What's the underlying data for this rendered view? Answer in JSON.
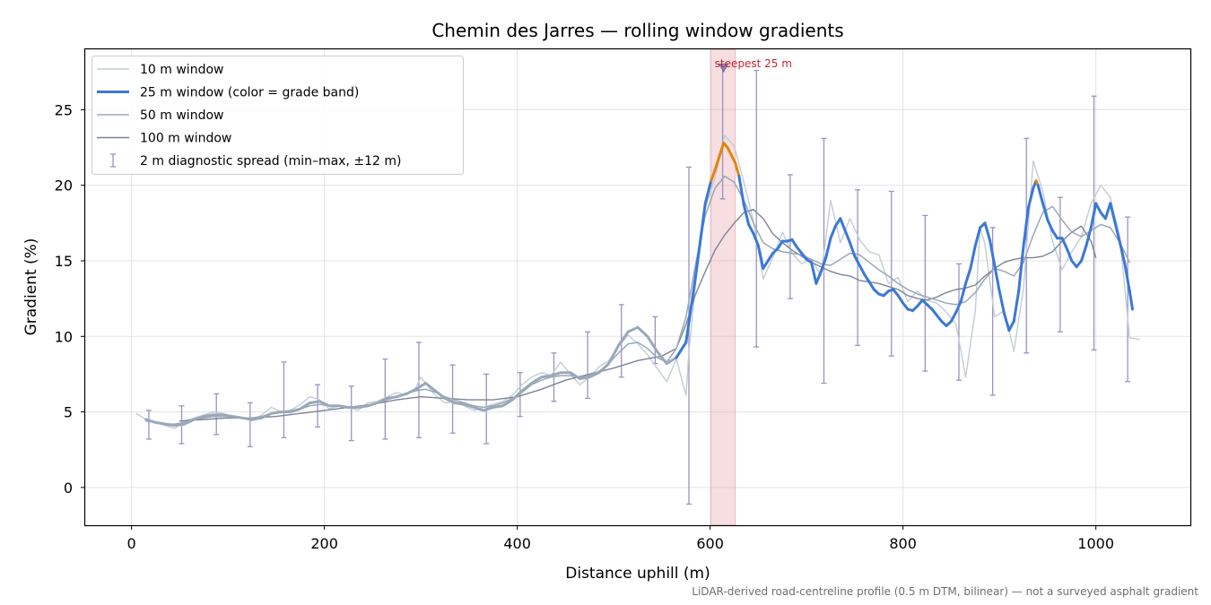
{
  "chart_data": {
    "type": "line",
    "title": "Chemin des Jarres — rolling window gradients",
    "xlabel": "Distance uphill (m)",
    "ylabel": "Gradient (%)",
    "xlim": [
      -48,
      1098
    ],
    "ylim": [
      -2.5,
      29
    ],
    "xticks": [
      0,
      200,
      400,
      600,
      800,
      1000
    ],
    "yticks": [
      0,
      5,
      10,
      15,
      20,
      25
    ],
    "grid": true,
    "legend_position": "top-left",
    "legend": [
      {
        "label": "10 m window",
        "color": "#c3ccd6",
        "kind": "line"
      },
      {
        "label": "25 m window (color = grade band)",
        "color": "#3a78d6",
        "kind": "thick-line"
      },
      {
        "label": "50 m window",
        "color": "#9aa8b8",
        "kind": "line"
      },
      {
        "label": "100 m window",
        "color": "#7a8596",
        "kind": "line"
      },
      {
        "label": "2 m diagnostic spread (min–max, ±12 m)",
        "color": "#9b93c0",
        "kind": "errorbar"
      }
    ],
    "colors": {
      "w10": "#c3ccd6",
      "w25": "#3a78d6",
      "w25_steep": "#e0850f",
      "w25_early": "#9aa8b8",
      "w50": "#9aa8b8",
      "w100": "#7a8596",
      "errorbar": "#9b93c0",
      "highlight": "#e8a3a8",
      "annotation": "#cc2233"
    },
    "steep_threshold": 20,
    "highlight_band": {
      "x0": 601,
      "x1": 626
    },
    "annotation": {
      "text": "steepest 25 m",
      "x": 614,
      "y": 27.8
    },
    "series": [
      {
        "name": "10 m window",
        "x": [
          5,
          15,
          25,
          35,
          45,
          55,
          65,
          75,
          85,
          95,
          105,
          115,
          125,
          135,
          145,
          155,
          165,
          175,
          185,
          195,
          205,
          215,
          225,
          235,
          245,
          255,
          265,
          275,
          285,
          295,
          300,
          305,
          315,
          325,
          335,
          345,
          355,
          365,
          375,
          385,
          395,
          405,
          415,
          425,
          435,
          445,
          455,
          465,
          475,
          485,
          495,
          505,
          515,
          525,
          535,
          545,
          555,
          565,
          575,
          578,
          585,
          595,
          605,
          615,
          625,
          635,
          645,
          655,
          665,
          675,
          685,
          695,
          705,
          715,
          725,
          735,
          745,
          755,
          765,
          775,
          785,
          795,
          805,
          815,
          825,
          835,
          845,
          855,
          865,
          875,
          880,
          885,
          895,
          905,
          915,
          925,
          935,
          945,
          955,
          965,
          975,
          985,
          995,
          1005,
          1015,
          1025,
          1035,
          1045
        ],
        "y": [
          4.9,
          4.5,
          4.3,
          4.1,
          3.9,
          4.4,
          4.6,
          4.8,
          5.0,
          4.9,
          4.7,
          4.6,
          4.4,
          4.8,
          5.3,
          5.0,
          5.1,
          5.5,
          6.0,
          5.8,
          5.2,
          5.4,
          5.3,
          5.1,
          5.6,
          5.7,
          6.0,
          6.3,
          6.1,
          6.6,
          7.3,
          6.9,
          6.1,
          5.6,
          5.7,
          5.4,
          5.1,
          5.3,
          5.5,
          5.7,
          6.1,
          6.8,
          7.3,
          7.6,
          7.4,
          8.3,
          7.5,
          6.8,
          7.3,
          8.0,
          8.4,
          9.3,
          10.1,
          9.5,
          8.8,
          7.9,
          7.0,
          8.5,
          6.1,
          9.0,
          13.5,
          18.5,
          20.5,
          23.3,
          22.6,
          20.2,
          17.6,
          13.8,
          15.2,
          16.9,
          15.5,
          14.8,
          15.1,
          14.0,
          19.0,
          16.2,
          17.8,
          16.4,
          15.6,
          15.4,
          13.5,
          13.9,
          12.3,
          13.0,
          12.4,
          12.2,
          11.6,
          10.8,
          7.3,
          11.7,
          17.2,
          16.1,
          11.3,
          11.7,
          9.0,
          13.2,
          21.6,
          19.6,
          16.3,
          14.4,
          15.6,
          16.6,
          18.8,
          20.0,
          19.2,
          16.5,
          9.9,
          9.8
        ]
      },
      {
        "name": "25 m window (color = grade band)",
        "x": [
          15,
          25,
          35,
          45,
          55,
          65,
          75,
          85,
          95,
          105,
          115,
          125,
          135,
          145,
          155,
          165,
          175,
          185,
          195,
          205,
          215,
          225,
          235,
          245,
          255,
          265,
          275,
          285,
          295,
          305,
          315,
          325,
          335,
          345,
          355,
          365,
          375,
          385,
          395,
          405,
          415,
          425,
          435,
          445,
          455,
          465,
          475,
          485,
          495,
          505,
          515,
          525,
          535,
          545,
          555,
          565,
          575,
          585,
          595,
          601,
          605,
          610,
          614,
          618,
          622,
          626,
          630,
          635,
          640,
          645,
          650,
          655,
          660,
          665,
          670,
          675,
          680,
          685,
          690,
          695,
          700,
          705,
          710,
          715,
          720,
          725,
          730,
          735,
          740,
          745,
          750,
          755,
          760,
          765,
          770,
          775,
          780,
          785,
          790,
          795,
          800,
          805,
          810,
          815,
          820,
          825,
          830,
          835,
          840,
          845,
          850,
          855,
          860,
          865,
          870,
          875,
          880,
          885,
          890,
          895,
          900,
          905,
          910,
          915,
          920,
          925,
          930,
          935,
          938,
          940,
          945,
          950,
          955,
          960,
          965,
          970,
          975,
          980,
          985,
          990,
          995,
          1000,
          1005,
          1010,
          1015,
          1020,
          1025,
          1030,
          1035,
          1038
        ],
        "y": [
          4.5,
          4.3,
          4.2,
          4.1,
          4.2,
          4.5,
          4.7,
          4.8,
          4.8,
          4.7,
          4.6,
          4.5,
          4.6,
          4.9,
          5.0,
          5.0,
          5.2,
          5.6,
          5.7,
          5.4,
          5.4,
          5.3,
          5.3,
          5.4,
          5.6,
          5.9,
          6.0,
          6.2,
          6.5,
          6.9,
          6.4,
          5.9,
          5.6,
          5.5,
          5.3,
          5.1,
          5.3,
          5.4,
          5.8,
          6.4,
          6.9,
          7.3,
          7.4,
          7.6,
          7.6,
          7.2,
          7.3,
          7.6,
          8.2,
          9.4,
          10.3,
          10.6,
          10.0,
          9.0,
          8.2,
          8.6,
          9.6,
          14.0,
          18.8,
          20.3,
          21.0,
          22.0,
          22.8,
          22.5,
          22.0,
          21.5,
          20.6,
          18.7,
          17.4,
          16.8,
          16.0,
          14.5,
          15.0,
          15.5,
          15.8,
          16.3,
          16.3,
          16.4,
          15.9,
          15.5,
          15.1,
          14.9,
          13.5,
          14.3,
          15.2,
          16.5,
          17.3,
          17.8,
          17.0,
          16.2,
          15.3,
          14.7,
          14.1,
          13.6,
          13.1,
          12.8,
          12.7,
          13.0,
          13.1,
          12.7,
          12.2,
          11.8,
          11.7,
          12.0,
          12.4,
          12.1,
          11.8,
          11.4,
          11.0,
          10.7,
          11.0,
          11.6,
          12.3,
          13.5,
          14.5,
          16.0,
          17.2,
          17.5,
          16.4,
          14.7,
          13.0,
          11.5,
          10.4,
          11.0,
          13.0,
          16.0,
          18.5,
          19.8,
          20.3,
          20.0,
          18.8,
          17.7,
          17.0,
          16.5,
          16.5,
          15.8,
          15.0,
          14.6,
          15.0,
          16.0,
          17.2,
          18.8,
          18.2,
          17.8,
          18.8,
          17.5,
          16.2,
          14.8,
          13.0,
          11.8
        ]
      },
      {
        "name": "50 m window",
        "x": [
          15,
          25,
          35,
          45,
          55,
          65,
          75,
          85,
          95,
          105,
          115,
          125,
          135,
          145,
          155,
          165,
          175,
          185,
          195,
          205,
          215,
          225,
          235,
          245,
          255,
          265,
          275,
          285,
          295,
          305,
          315,
          325,
          335,
          345,
          355,
          365,
          375,
          385,
          395,
          405,
          415,
          425,
          435,
          445,
          455,
          465,
          475,
          485,
          495,
          505,
          515,
          525,
          535,
          545,
          555,
          565,
          575,
          585,
          595,
          605,
          615,
          625,
          635,
          645,
          655,
          665,
          675,
          685,
          695,
          705,
          715,
          725,
          735,
          745,
          755,
          765,
          775,
          785,
          795,
          805,
          815,
          825,
          835,
          845,
          855,
          865,
          875,
          885,
          895,
          905,
          915,
          925,
          935,
          945,
          955,
          965,
          975,
          985,
          995,
          1005,
          1015,
          1025,
          1035
        ],
        "y": [
          4.4,
          4.3,
          4.2,
          4.2,
          4.3,
          4.5,
          4.6,
          4.7,
          4.7,
          4.7,
          4.6,
          4.6,
          4.7,
          4.9,
          5.0,
          5.1,
          5.2,
          5.4,
          5.5,
          5.4,
          5.4,
          5.3,
          5.3,
          5.4,
          5.6,
          5.8,
          6.0,
          6.2,
          6.4,
          6.5,
          6.3,
          6.0,
          5.8,
          5.6,
          5.4,
          5.3,
          5.4,
          5.6,
          5.9,
          6.3,
          6.8,
          7.1,
          7.3,
          7.4,
          7.4,
          7.3,
          7.4,
          7.7,
          8.2,
          8.9,
          9.5,
          9.6,
          9.2,
          8.6,
          8.3,
          9.2,
          11.3,
          14.8,
          18.0,
          19.8,
          20.6,
          20.2,
          19.0,
          17.5,
          16.2,
          15.8,
          15.6,
          15.5,
          15.4,
          15.1,
          14.8,
          14.7,
          15.1,
          15.5,
          15.4,
          14.9,
          14.4,
          14.0,
          13.5,
          13.1,
          12.8,
          12.6,
          12.4,
          12.2,
          12.1,
          12.3,
          12.9,
          13.8,
          14.5,
          14.3,
          14.0,
          14.9,
          16.7,
          18.2,
          18.6,
          17.7,
          16.9,
          16.6,
          17.0,
          17.4,
          17.2,
          16.2,
          14.9
        ]
      },
      {
        "name": "100 m window",
        "x": [
          50,
          75,
          100,
          125,
          150,
          175,
          200,
          225,
          250,
          275,
          300,
          325,
          350,
          375,
          400,
          425,
          450,
          475,
          500,
          525,
          550,
          565,
          575,
          585,
          595,
          605,
          615,
          625,
          635,
          645,
          655,
          665,
          675,
          685,
          695,
          705,
          715,
          725,
          735,
          745,
          755,
          765,
          775,
          785,
          795,
          805,
          815,
          825,
          835,
          845,
          855,
          865,
          875,
          885,
          895,
          905,
          915,
          925,
          935,
          945,
          955,
          965,
          975,
          985,
          995,
          1000
        ],
        "y": [
          4.4,
          4.5,
          4.6,
          4.6,
          4.7,
          4.9,
          5.1,
          5.3,
          5.5,
          5.8,
          6.0,
          5.9,
          5.8,
          5.8,
          6.0,
          6.5,
          7.1,
          7.5,
          7.9,
          8.4,
          8.7,
          9.2,
          10.8,
          12.8,
          14.3,
          15.7,
          16.7,
          17.5,
          18.2,
          18.4,
          17.8,
          16.8,
          16.2,
          15.7,
          15.3,
          14.9,
          14.6,
          14.3,
          14.1,
          14.0,
          13.7,
          13.6,
          13.5,
          13.3,
          13.1,
          12.7,
          12.5,
          12.4,
          12.6,
          12.9,
          13.1,
          13.2,
          13.4,
          14.0,
          14.5,
          14.9,
          15.1,
          15.2,
          15.2,
          15.3,
          15.6,
          16.3,
          16.9,
          17.3,
          16.3,
          15.2
        ]
      }
    ],
    "error_bars": {
      "name": "2 m diagnostic spread (min–max, ±12 m)",
      "x": [
        18,
        52,
        88,
        123,
        158,
        193,
        228,
        263,
        298,
        333,
        368,
        403,
        438,
        473,
        508,
        543,
        578,
        613,
        648,
        683,
        718,
        753,
        788,
        823,
        858,
        893,
        928,
        963,
        998,
        1033
      ],
      "low": [
        3.2,
        2.9,
        3.5,
        2.7,
        3.3,
        4.0,
        3.1,
        3.2,
        3.3,
        3.6,
        2.9,
        4.7,
        5.7,
        5.9,
        7.3,
        8.2,
        -1.1,
        19.1,
        9.3,
        12.5,
        6.9,
        9.4,
        8.7,
        7.7,
        7.1,
        6.1,
        8.9,
        10.3,
        9.1,
        7.0
      ],
      "high": [
        5.1,
        5.4,
        6.2,
        5.6,
        8.3,
        6.8,
        6.7,
        8.5,
        9.6,
        8.1,
        7.5,
        7.6,
        8.9,
        10.3,
        12.1,
        11.3,
        21.2,
        27.9,
        27.6,
        20.7,
        23.1,
        19.7,
        19.6,
        18.0,
        14.8,
        17.2,
        23.1,
        19.2,
        25.9,
        17.9
      ]
    },
    "footnote": "LiDAR-derived road-centreline profile (0.5 m DTM, bilinear) — not a surveyed asphalt gradient"
  }
}
